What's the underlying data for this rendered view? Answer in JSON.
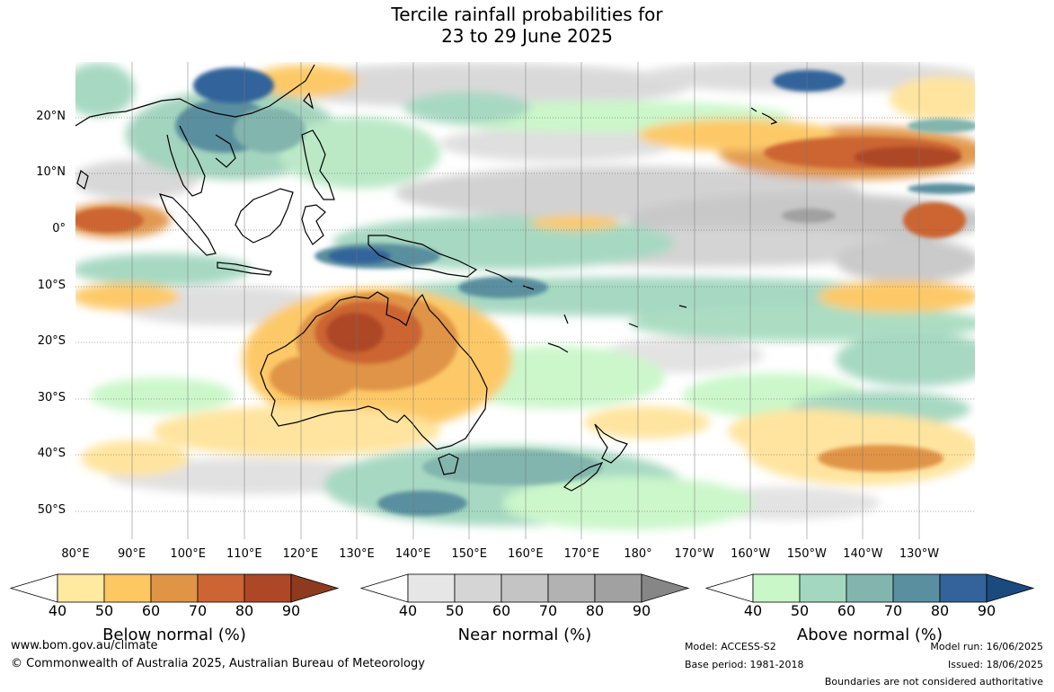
{
  "title": {
    "line1": "Tercile rainfall probabilities for",
    "line2": "23 to 29 June 2025"
  },
  "axes": {
    "lat_labels": [
      "20°N",
      "10°N",
      "0°",
      "10°S",
      "20°S",
      "30°S",
      "40°S",
      "50°S"
    ],
    "lon_labels": [
      "80°E",
      "90°E",
      "100°E",
      "110°E",
      "120°E",
      "130°E",
      "140°E",
      "150°E",
      "160°E",
      "170°E",
      "180°",
      "170°W",
      "160°W",
      "150°W",
      "140°W",
      "130°W"
    ]
  },
  "legend": {
    "tick_labels": [
      "40",
      "50",
      "60",
      "70",
      "80",
      "90"
    ],
    "below": {
      "title": "Below normal (%)",
      "colors": [
        "#ffffff",
        "#ffeaa0",
        "#fdc761",
        "#e09446",
        "#cc6533",
        "#ae4726",
        "#8e3a1f"
      ]
    },
    "near": {
      "title": "Near normal (%)",
      "colors": [
        "#ffffff",
        "#e6e6e6",
        "#d5d5d5",
        "#c4c4c4",
        "#b2b2b2",
        "#a1a1a1",
        "#868686"
      ]
    },
    "above": {
      "title": "Above normal (%)",
      "colors": [
        "#ffffff",
        "#c9f7c8",
        "#a3d7bf",
        "#82b5ad",
        "#5a8f9f",
        "#33639a",
        "#1b4a7f"
      ]
    }
  },
  "footer": {
    "website": "www.bom.gov.au/climate",
    "copyright": "© Commonwealth of Australia 2025, Australian Bureau of Meteorology",
    "model": "Model: ACCESS-S2",
    "base_period": "Base period: 1981-2018",
    "model_run": "Model run: 16/06/2025",
    "issued": "Issued: 18/06/2025",
    "disclaimer": "Boundaries are not considered authoritative"
  }
}
